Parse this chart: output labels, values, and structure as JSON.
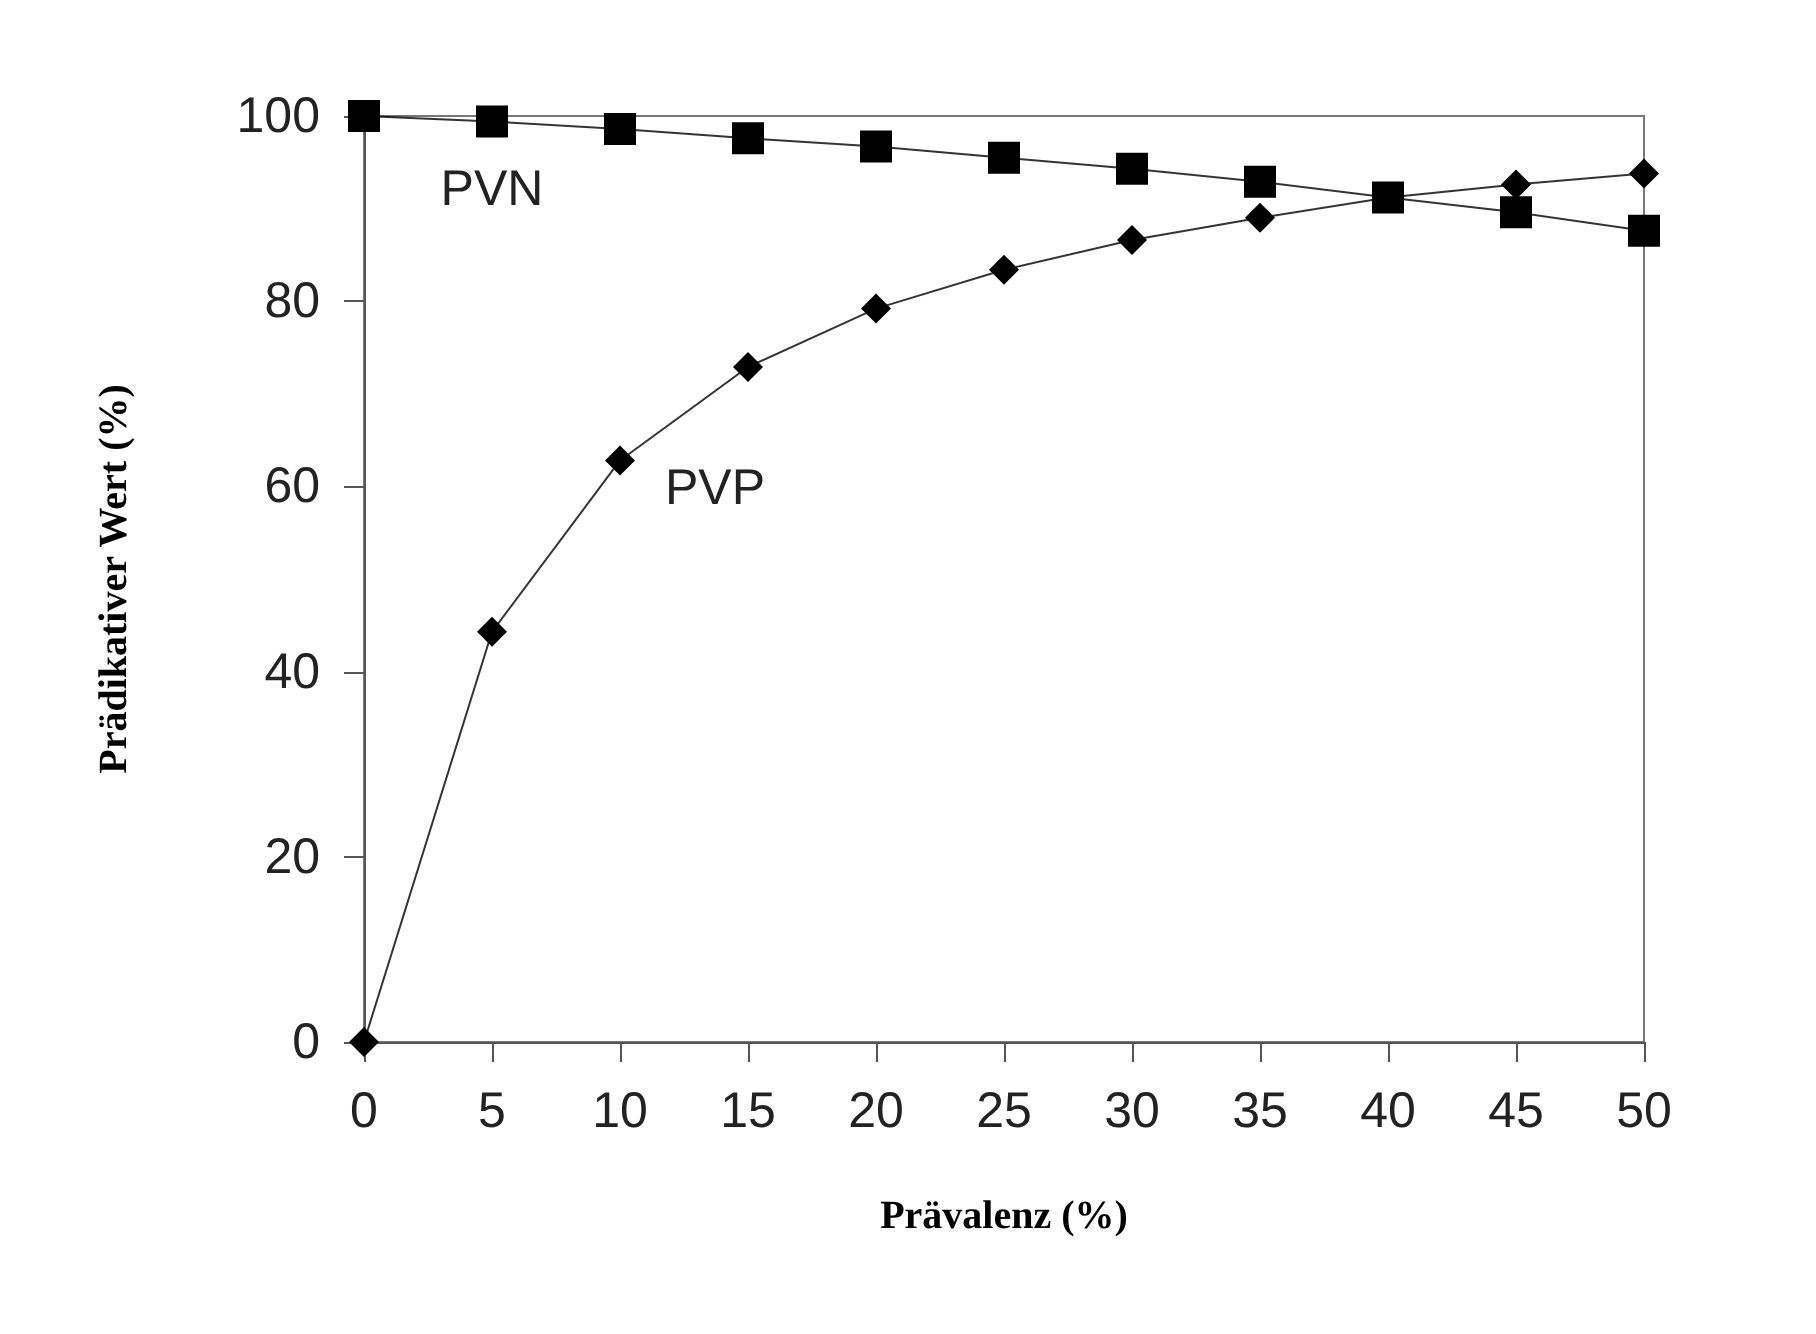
{
  "chart_data": {
    "type": "line",
    "xlabel": "Prävalenz (%)",
    "ylabel": "Prädikativer Wert (%)",
    "x": [
      0,
      5,
      10,
      15,
      20,
      25,
      30,
      35,
      40,
      45,
      50
    ],
    "series": [
      {
        "name": "PVP",
        "color": "#000000",
        "marker": "diamond",
        "values": [
          0,
          44.3,
          62.8,
          72.9,
          79.2,
          83.4,
          86.6,
          89.0,
          91.2,
          92.6,
          93.8
        ]
      },
      {
        "name": "PVN",
        "color": "#000000",
        "marker": "square",
        "values": [
          100,
          99.4,
          98.6,
          97.6,
          96.7,
          95.5,
          94.3,
          92.9,
          91.2,
          89.6,
          87.6
        ]
      }
    ],
    "xlim": [
      0,
      50
    ],
    "xticks": [
      0,
      5,
      10,
      15,
      20,
      25,
      30,
      35,
      40,
      45,
      50
    ],
    "ylim": [
      0,
      100
    ],
    "yticks": [
      0,
      20,
      40,
      60,
      80,
      100
    ],
    "grid": false,
    "legend": false,
    "line_style": "solid"
  }
}
